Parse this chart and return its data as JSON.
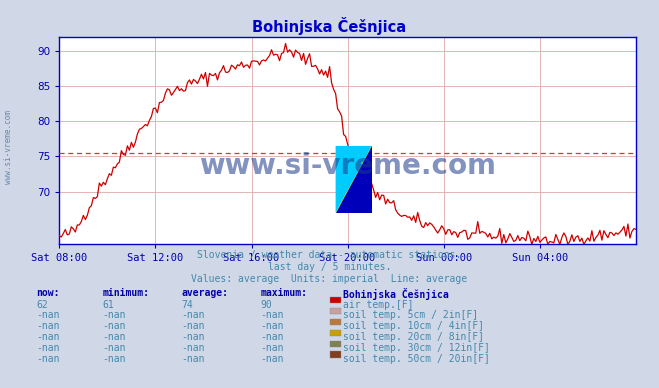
{
  "title": "Bohinjska Češnjica",
  "title_color": "#0000cc",
  "bg_color": "#d0d8e8",
  "plot_bg_color": "#ffffff",
  "line_color": "#cc0000",
  "hline_color": "#dd3333",
  "hline_y": 75.5,
  "ylim": [
    62.5,
    92
  ],
  "yticks": [
    70,
    75,
    80,
    85,
    90
  ],
  "grid_color": "#ddaaaa",
  "watermark_text": "www.si-vreme.com",
  "watermark_color": "#1a3a8a",
  "watermark_alpha": 0.55,
  "subtitle1": "Slovenia / weather data - automatic stations.",
  "subtitle2": "last day / 5 minutes.",
  "subtitle3": "Values: average  Units: imperial  Line: average",
  "subtitle_color": "#4488aa",
  "table_header": [
    "now:",
    "minimum:",
    "average:",
    "maximum:",
    "Bohinjska Češnjica"
  ],
  "table_row1": [
    "62",
    "61",
    "74",
    "90"
  ],
  "table_rows": [
    [
      "-nan",
      "-nan",
      "-nan",
      "-nan"
    ],
    [
      "-nan",
      "-nan",
      "-nan",
      "-nan"
    ],
    [
      "-nan",
      "-nan",
      "-nan",
      "-nan"
    ],
    [
      "-nan",
      "-nan",
      "-nan",
      "-nan"
    ],
    [
      "-nan",
      "-nan",
      "-nan",
      "-nan"
    ]
  ],
  "legend_items": [
    {
      "label": "air temp.[F]",
      "color": "#cc0000"
    },
    {
      "label": "soil temp. 5cm / 2in[F]",
      "color": "#c8a0a0"
    },
    {
      "label": "soil temp. 10cm / 4in[F]",
      "color": "#b87840"
    },
    {
      "label": "soil temp. 20cm / 8in[F]",
      "color": "#c8a000"
    },
    {
      "label": "soil temp. 30cm / 12in[F]",
      "color": "#808050"
    },
    {
      "label": "soil temp. 50cm / 20in[F]",
      "color": "#804020"
    }
  ],
  "xtick_labels": [
    "Sat 08:00",
    "Sat 12:00",
    "Sat 16:00",
    "Sat 20:00",
    "Sun 00:00",
    "Sun 04:00"
  ],
  "xtick_positions": [
    0,
    48,
    96,
    144,
    192,
    240
  ],
  "axis_color": "#0000cc",
  "tick_color": "#0000aa",
  "sidebar_text": "www.si-vreme.com",
  "sidebar_color": "#6688aa"
}
